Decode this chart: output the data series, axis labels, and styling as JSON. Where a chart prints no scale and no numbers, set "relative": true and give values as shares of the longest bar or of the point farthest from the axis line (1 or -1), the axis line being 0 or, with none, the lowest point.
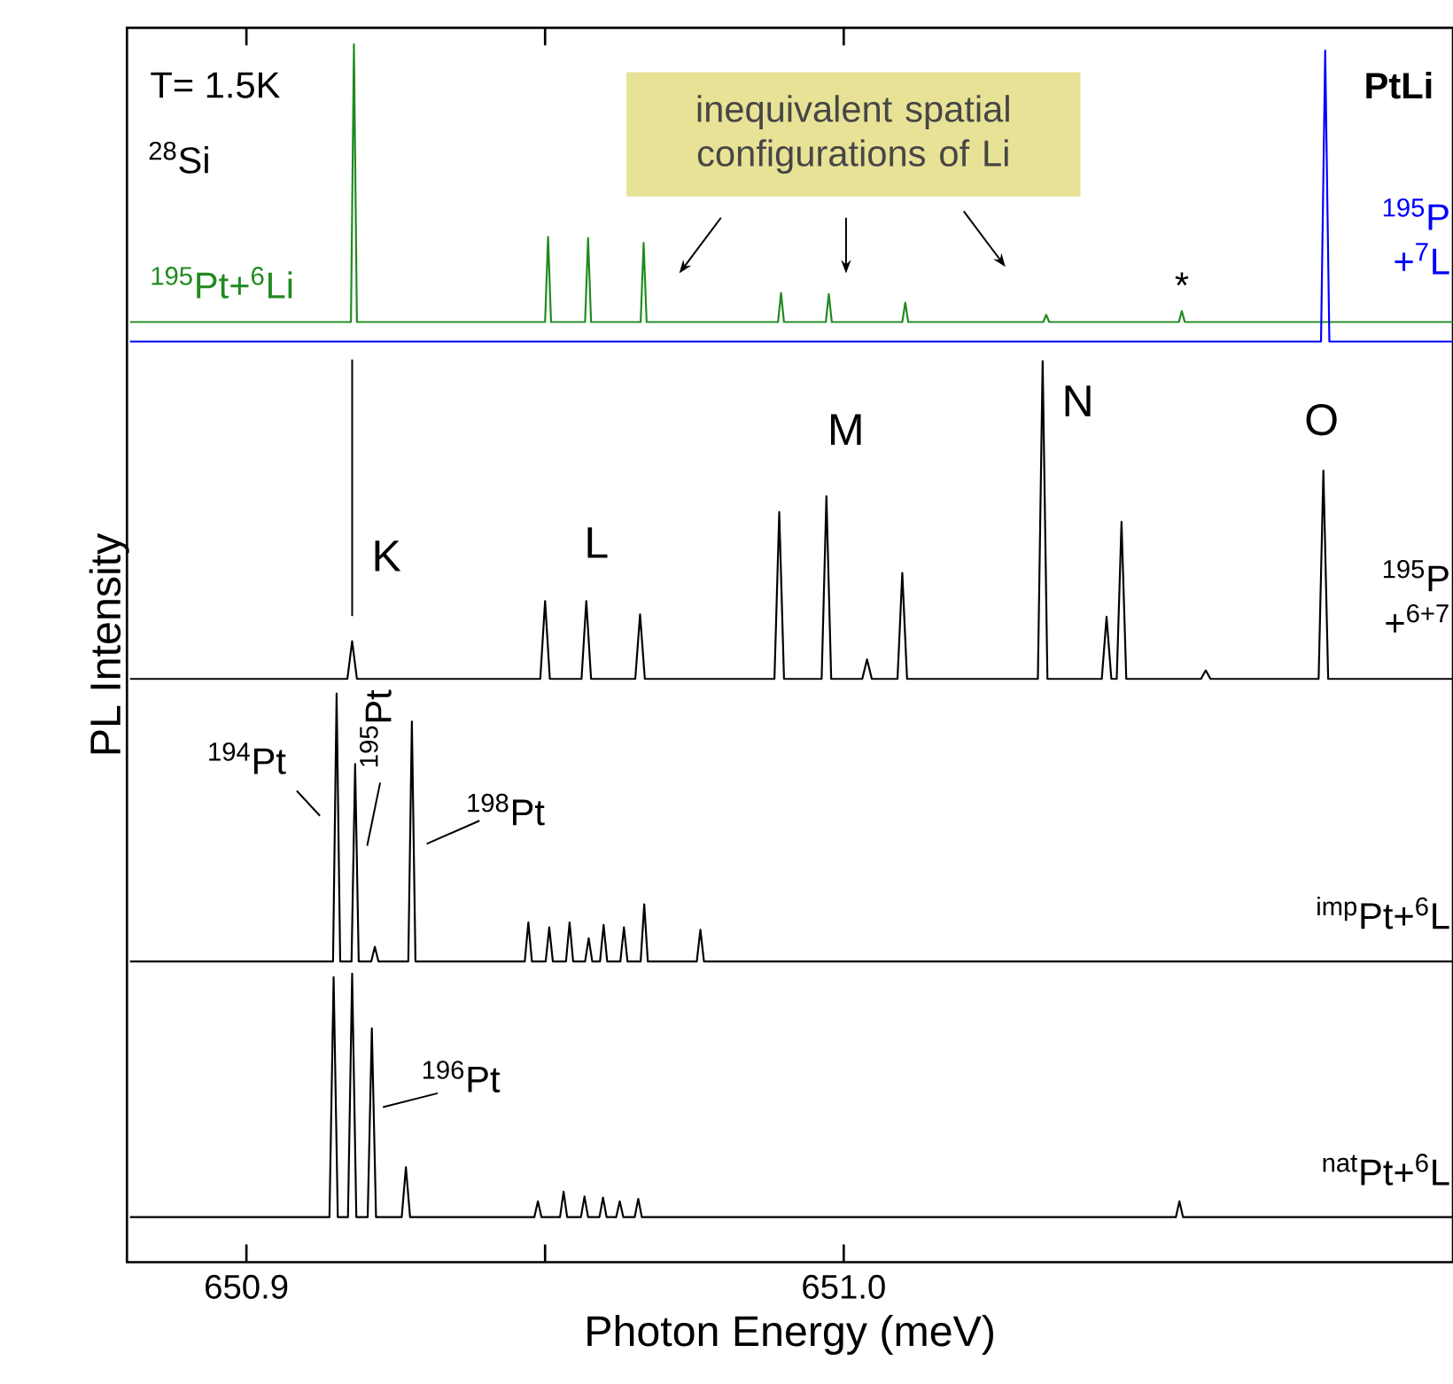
{
  "chart_data": {
    "type": "line",
    "relative": true,
    "xlabel": "Photon Energy (meV)",
    "ylabel": "PL Intensity",
    "xlim": [
      650.88,
      651.102
    ],
    "xticks": [
      {
        "value": 650.9,
        "label": "650.9"
      },
      {
        "value": 651.0,
        "label": "651.0"
      }
    ],
    "series": [
      {
        "name": "$^{195}$Pt+$^{6}$Li",
        "color": "#1f8a1f",
        "x": [
          650.8805,
          650.9175,
          650.918,
          650.9185,
          650.95,
          650.9505,
          650.951,
          650.9567,
          650.9572,
          650.9577,
          650.966,
          650.9665,
          650.967,
          650.989,
          650.9895,
          650.99,
          650.997,
          650.9975,
          650.998,
          651.0098,
          651.0103,
          651.0108,
          651.0334,
          651.0339,
          651.0344,
          651.0561,
          651.0566,
          651.0571,
          651.102
        ],
        "values": [
          0.772,
          0.772,
          1.0,
          0.772,
          0.772,
          0.842,
          0.772,
          0.772,
          0.841,
          0.772,
          0.772,
          0.837,
          0.772,
          0.772,
          0.796,
          0.772,
          0.772,
          0.795,
          0.772,
          0.772,
          0.788,
          0.772,
          0.772,
          0.778,
          0.772,
          0.772,
          0.781,
          0.772,
          0.772
        ]
      },
      {
        "name": "$^{195}$P +$^{7}$L",
        "color": "#0000ff",
        "x": [
          650.8805,
          651.0799,
          651.0806,
          651.0813,
          651.102
        ],
        "values": [
          0.756,
          0.756,
          0.995,
          0.756,
          0.756
        ]
      },
      {
        "name": "$^{195}$P +$^{6+7}$",
        "color": "#000000",
        "x": [
          650.8805,
          650.9169,
          650.9177,
          650.9185,
          650.9492,
          650.95,
          650.9508,
          650.9561,
          650.9569,
          650.9577,
          650.9651,
          650.9659,
          650.9667,
          650.9884,
          650.9892,
          650.99,
          650.9963,
          650.9971,
          650.9979,
          651.0031,
          651.0039,
          651.0047,
          651.009,
          651.0098,
          651.0106,
          651.0325,
          651.0333,
          651.0341,
          651.0432,
          651.044,
          651.0448,
          651.0457,
          651.0465,
          651.0473,
          651.0598,
          651.0606,
          651.0614,
          651.0795,
          651.0803,
          651.0811,
          651.102
        ],
        "values": [
          0.479,
          0.479,
          0.51,
          0.479,
          0.479,
          0.543,
          0.479,
          0.479,
          0.543,
          0.479,
          0.479,
          0.532,
          0.479,
          0.479,
          0.616,
          0.479,
          0.479,
          0.629,
          0.479,
          0.479,
          0.495,
          0.479,
          0.479,
          0.566,
          0.479,
          0.479,
          0.74,
          0.479,
          0.479,
          0.53,
          0.479,
          0.479,
          0.608,
          0.479,
          0.479,
          0.486,
          0.479,
          0.479,
          0.65,
          0.479,
          0.479
        ]
      },
      {
        "name": "$^{imp}$Pt+$^{6}$L",
        "color": "#000000",
        "x": [
          650.8805,
          650.9145,
          650.9151,
          650.9157,
          650.9176,
          650.9182,
          650.9188,
          650.9209,
          650.9215,
          650.9221,
          650.9271,
          650.9277,
          650.9283,
          650.9466,
          650.9472,
          650.9478,
          650.9501,
          650.9507,
          650.9513,
          650.9535,
          650.9541,
          650.9547,
          650.9567,
          650.9573,
          650.9579,
          650.9592,
          650.9598,
          650.9604,
          650.9626,
          650.9632,
          650.9638,
          650.966,
          650.9666,
          650.9672,
          650.9754,
          650.976,
          650.9766,
          651.102
        ],
        "values": [
          0.247,
          0.247,
          0.467,
          0.247,
          0.247,
          0.409,
          0.247,
          0.247,
          0.259,
          0.247,
          0.247,
          0.444,
          0.247,
          0.247,
          0.279,
          0.247,
          0.247,
          0.275,
          0.247,
          0.247,
          0.279,
          0.247,
          0.247,
          0.266,
          0.247,
          0.247,
          0.277,
          0.247,
          0.247,
          0.275,
          0.247,
          0.247,
          0.294,
          0.247,
          0.247,
          0.273,
          0.247,
          0.247
        ]
      },
      {
        "name": "$^{nat}$Pt+$^{6}$L",
        "color": "#000000",
        "x": [
          650.8805,
          650.9139,
          650.9146,
          650.9153,
          650.917,
          650.9177,
          650.9184,
          650.9203,
          650.921,
          650.9217,
          650.926,
          650.9267,
          650.9274,
          650.9482,
          650.9488,
          650.9494,
          650.9525,
          650.9531,
          650.9537,
          650.956,
          650.9566,
          650.9572,
          650.9591,
          650.9597,
          650.9603,
          650.9619,
          650.9625,
          650.9631,
          650.965,
          650.9656,
          650.9662,
          651.0556,
          651.0562,
          651.0568,
          651.102
        ],
        "values": [
          0.037,
          0.037,
          0.234,
          0.037,
          0.037,
          0.237,
          0.037,
          0.037,
          0.192,
          0.037,
          0.037,
          0.078,
          0.037,
          0.037,
          0.05,
          0.037,
          0.037,
          0.058,
          0.037,
          0.037,
          0.054,
          0.037,
          0.037,
          0.053,
          0.037,
          0.037,
          0.05,
          0.037,
          0.037,
          0.052,
          0.037,
          0.037,
          0.05,
          0.037,
          0.037
        ]
      }
    ],
    "annotations": [
      "T= 1.5K",
      "$^{28}$Si",
      "**PtLi**",
      "inequivalent spatial configurations of Li",
      {
        "text": "*",
        "x": 651.0566,
        "y": 0.781
      },
      {
        "text": "K",
        "x": 650.9177,
        "y": 0.51
      },
      {
        "text": "L",
        "x": 650.9569,
        "y": 0.543
      },
      {
        "text": "M",
        "x": 650.9971,
        "y": 0.629
      },
      {
        "text": "N",
        "x": 651.0333,
        "y": 0.74
      },
      {
        "text": "O",
        "x": 651.0803,
        "y": 0.65
      },
      {
        "text": "$^{194}$Pt",
        "x": 650.9151,
        "y": 0.467
      },
      {
        "text": "$^{195}$Pt",
        "x": 650.9182,
        "y": 0.409
      },
      {
        "text": "$^{198}$Pt",
        "x": 650.9277,
        "y": 0.444
      },
      {
        "text": "$^{196}$Pt",
        "x": 650.921,
        "y": 0.192
      }
    ]
  }
}
